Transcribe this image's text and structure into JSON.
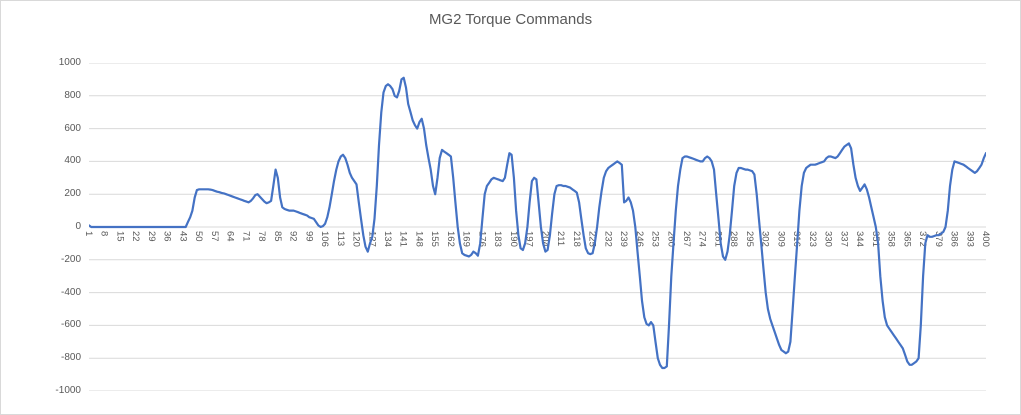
{
  "chart_data": {
    "type": "line",
    "title": "MG2 Torque Commands",
    "xlabel": "",
    "ylabel": "",
    "ylim": [
      -1000,
      1000
    ],
    "y_ticks": [
      1000,
      800,
      600,
      400,
      200,
      0,
      -200,
      -400,
      -600,
      -800,
      -1000
    ],
    "x_tick_labels": [
      1,
      8,
      15,
      22,
      29,
      36,
      43,
      50,
      57,
      64,
      71,
      78,
      85,
      92,
      99,
      106,
      113,
      120,
      127,
      134,
      141,
      148,
      155,
      162,
      169,
      176,
      183,
      190,
      197,
      204,
      211,
      218,
      225,
      232,
      239,
      246,
      253,
      260,
      267,
      274,
      281,
      288,
      295,
      302,
      309,
      316,
      323,
      330,
      337,
      344,
      351,
      358,
      365,
      372,
      379,
      386,
      393,
      400
    ],
    "x_range": [
      1,
      400
    ],
    "grid": true,
    "legend": false,
    "line_color": "#4472C4",
    "grid_color": "#d9d9d9",
    "text_color": "#595959",
    "values": [
      10,
      0,
      0,
      0,
      0,
      0,
      0,
      0,
      0,
      0,
      0,
      0,
      0,
      0,
      0,
      0,
      0,
      0,
      0,
      0,
      0,
      0,
      0,
      0,
      0,
      0,
      0,
      0,
      0,
      0,
      0,
      0,
      0,
      0,
      0,
      0,
      0,
      0,
      0,
      0,
      0,
      0,
      0,
      0,
      30,
      60,
      100,
      180,
      225,
      230,
      230,
      230,
      230,
      230,
      228,
      225,
      220,
      215,
      212,
      208,
      205,
      200,
      195,
      190,
      185,
      180,
      175,
      170,
      165,
      160,
      155,
      150,
      160,
      175,
      195,
      200,
      185,
      170,
      155,
      145,
      150,
      160,
      250,
      350,
      300,
      180,
      120,
      110,
      105,
      100,
      100,
      100,
      95,
      90,
      85,
      80,
      75,
      70,
      60,
      55,
      50,
      30,
      10,
      0,
      5,
      20,
      60,
      120,
      200,
      280,
      350,
      400,
      430,
      440,
      420,
      380,
      330,
      300,
      280,
      260,
      150,
      50,
      -50,
      -120,
      -150,
      -100,
      -60,
      50,
      250,
      500,
      700,
      820,
      860,
      870,
      860,
      840,
      800,
      790,
      830,
      900,
      910,
      850,
      750,
      700,
      650,
      620,
      600,
      640,
      660,
      600,
      500,
      420,
      350,
      250,
      200,
      300,
      420,
      470,
      460,
      450,
      440,
      430,
      300,
      150,
      0,
      -100,
      -160,
      -170,
      -175,
      -180,
      -170,
      -150,
      -160,
      -175,
      -100,
      50,
      200,
      250,
      270,
      290,
      300,
      295,
      290,
      285,
      280,
      300,
      380,
      450,
      440,
      300,
      100,
      -50,
      -130,
      -140,
      -100,
      0,
      150,
      280,
      300,
      290,
      150,
      0,
      -100,
      -150,
      -140,
      -50,
      80,
      200,
      250,
      255,
      255,
      250,
      250,
      245,
      240,
      230,
      220,
      210,
      150,
      50,
      -50,
      -130,
      -160,
      -165,
      -160,
      -100,
      0,
      120,
      220,
      300,
      340,
      360,
      370,
      380,
      390,
      400,
      390,
      380,
      150,
      160,
      180,
      150,
      100,
      0,
      -150,
      -300,
      -450,
      -550,
      -590,
      -600,
      -580,
      -600,
      -700,
      -800,
      -840,
      -860,
      -860,
      -850,
      -600,
      -300,
      -100,
      100,
      250,
      350,
      420,
      430,
      430,
      425,
      420,
      415,
      410,
      405,
      400,
      400,
      420,
      430,
      420,
      400,
      350,
      200,
      50,
      -100,
      -180,
      -200,
      -150,
      -50,
      100,
      250,
      330,
      360,
      360,
      355,
      350,
      350,
      345,
      340,
      320,
      200,
      50,
      -100,
      -250,
      -400,
      -500,
      -560,
      -600,
      -640,
      -680,
      -720,
      -750,
      -760,
      -770,
      -760,
      -700,
      -500,
      -300,
      -100,
      100,
      250,
      330,
      360,
      370,
      380,
      380,
      380,
      385,
      390,
      395,
      400,
      420,
      430,
      430,
      425,
      420,
      430,
      450,
      470,
      490,
      500,
      510,
      480,
      380,
      300,
      250,
      220,
      240,
      260,
      230,
      180,
      120,
      60,
      0,
      -100,
      -300,
      -450,
      -550,
      -600,
      -620,
      -640,
      -660,
      -680,
      -700,
      -720,
      -740,
      -780,
      -820,
      -840,
      -840,
      -830,
      -820,
      -800,
      -600,
      -300,
      -100,
      -50,
      -60,
      -60,
      -55,
      -50,
      -50,
      -40,
      -30,
      0,
      100,
      250,
      350,
      400,
      395,
      390,
      385,
      380,
      370,
      360,
      350,
      340,
      330,
      340,
      360,
      380,
      420,
      450
    ]
  }
}
